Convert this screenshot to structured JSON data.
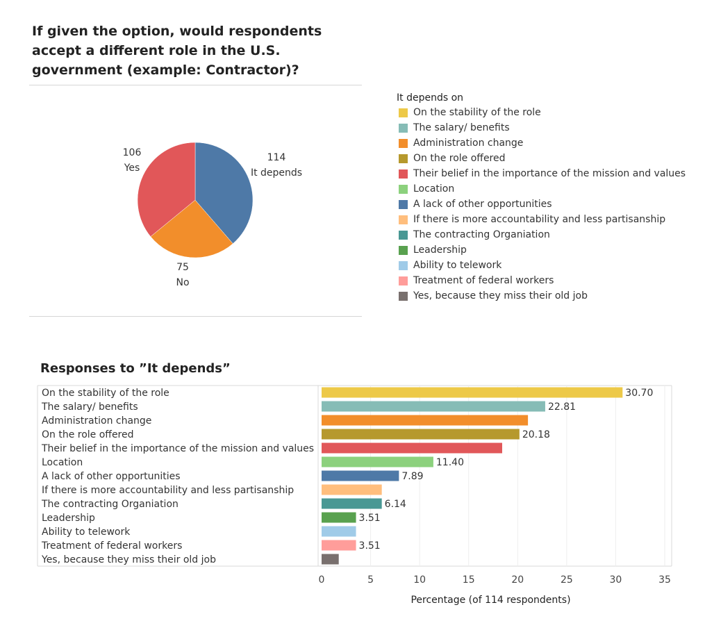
{
  "pie_chart": {
    "title": "If given the option, would respondents accept a different role in the U.S. government (example: Contractor)?"
  },
  "legend": {
    "title": "It depends on"
  },
  "bar_chart": {
    "title": "Responses to ”It depends”"
  },
  "chart_data": [
    {
      "type": "pie",
      "title": "If given the option, would respondents accept a different role in the U.S. government (example: Contractor)?",
      "slices": [
        {
          "label": "It depends",
          "value": 114,
          "color": "#4e79a7"
        },
        {
          "label": "No",
          "value": 75,
          "color": "#f28e2b"
        },
        {
          "label": "Yes",
          "value": 106,
          "color": "#e15759"
        }
      ]
    },
    {
      "type": "bar",
      "orientation": "horizontal",
      "title": "Responses to ”It depends”",
      "xlabel": "Percentage (of 114 respondents)",
      "ylabel": "",
      "xlim": [
        0,
        35
      ],
      "xticks": [
        0,
        5,
        10,
        15,
        20,
        25,
        30,
        35
      ],
      "grid": true,
      "categories": [
        "On the stability of the role",
        "The salary/ benefits",
        "Administration change",
        "On the role offered",
        "Their belief in the importance of the mission and values",
        "Location",
        "A lack of other opportunities",
        "If there is more accountability and less partisanship",
        "The contracting Organiation",
        "Leadership",
        "Ability to telework",
        "Treatment of federal workers",
        "Yes, because they miss their old job"
      ],
      "values": [
        30.7,
        22.81,
        21.05,
        20.18,
        18.42,
        11.4,
        7.89,
        6.14,
        6.14,
        3.51,
        3.51,
        3.51,
        1.75
      ],
      "data_labels": [
        "30.70",
        "22.81",
        "",
        "20.18",
        "",
        "11.40",
        "7.89",
        "",
        "6.14",
        "3.51",
        "",
        "3.51",
        ""
      ],
      "colors": [
        "#edc948",
        "#86bcb6",
        "#f28e2b",
        "#b6992d",
        "#e15759",
        "#8cd17d",
        "#4e79a7",
        "#ffbe7d",
        "#499894",
        "#59a14f",
        "#a0cbe8",
        "#ff9d9a",
        "#79706e"
      ]
    }
  ]
}
